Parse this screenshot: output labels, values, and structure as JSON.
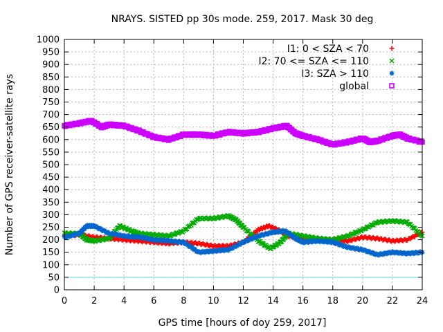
{
  "chart_data": {
    "type": "scatter",
    "title": "NRAYS. SISTED pp 30s mode. 259, 2017. Mask 30 deg",
    "xlabel": "GPS time [hours of doy 259, 2017]",
    "ylabel": "Number of GPS receiver-satellite rays",
    "xlim": [
      0,
      24
    ],
    "ylim": [
      0,
      1000
    ],
    "xticks": [
      0,
      2,
      4,
      6,
      8,
      10,
      12,
      14,
      16,
      18,
      20,
      22,
      24
    ],
    "yticks": [
      0,
      50,
      100,
      150,
      200,
      250,
      300,
      350,
      400,
      450,
      500,
      550,
      600,
      650,
      700,
      750,
      800,
      850,
      900,
      950,
      1000
    ],
    "grid": true,
    "legend_position": "top-right",
    "reference_line": {
      "y": 50,
      "color": "#4fd6d6"
    },
    "series": [
      {
        "name": "I1: 0 < SZA < 70",
        "color": "#ff0000",
        "marker": "+",
        "x": [
          0,
          1,
          2,
          3,
          4,
          5,
          6,
          7,
          8,
          9,
          10,
          11,
          12,
          13,
          13.7,
          14.5,
          15,
          16,
          17,
          18,
          19,
          20,
          21,
          22,
          23,
          24
        ],
        "y": [
          215,
          220,
          210,
          205,
          200,
          195,
          190,
          185,
          190,
          185,
          175,
          175,
          190,
          240,
          255,
          235,
          215,
          205,
          200,
          200,
          195,
          210,
          205,
          195,
          200,
          230
        ]
      },
      {
        "name": "I2: 70 <= SZA <= 110",
        "color": "#00aa00",
        "marker": "x",
        "x": [
          0,
          1,
          1.5,
          2,
          3,
          3.7,
          4.5,
          5,
          6,
          7,
          8,
          9,
          10,
          11,
          11.5,
          12,
          13,
          13.8,
          14.5,
          15,
          16,
          17,
          18,
          19,
          20,
          21,
          22,
          23,
          24
        ],
        "y": [
          225,
          225,
          200,
          195,
          205,
          255,
          235,
          225,
          220,
          215,
          235,
          285,
          285,
          295,
          280,
          250,
          195,
          165,
          190,
          225,
          215,
          205,
          200,
          215,
          240,
          270,
          275,
          270,
          215
        ]
      },
      {
        "name": "I3: SZA > 110",
        "color": "#0066cc",
        "marker": "*",
        "x": [
          0,
          1,
          1.5,
          2,
          3,
          4,
          5,
          6,
          7,
          8,
          9,
          10,
          11,
          12,
          13,
          14,
          14.8,
          15.5,
          16,
          17,
          18,
          19,
          20,
          21,
          22,
          23,
          24
        ],
        "y": [
          210,
          225,
          255,
          255,
          225,
          215,
          210,
          200,
          195,
          190,
          150,
          155,
          160,
          190,
          215,
          230,
          235,
          205,
          190,
          195,
          190,
          170,
          160,
          140,
          150,
          145,
          150
        ]
      },
      {
        "name": "global",
        "color": "#cc00ff",
        "marker": "square",
        "x": [
          0,
          1,
          1.8,
          2.5,
          3,
          4,
          5,
          6,
          7,
          8,
          9,
          10,
          11,
          12,
          13,
          14,
          14.9,
          15.5,
          16,
          17,
          18,
          19,
          20,
          20.5,
          21,
          22,
          22.5,
          23,
          24
        ],
        "y": [
          655,
          665,
          675,
          650,
          660,
          655,
          635,
          610,
          600,
          620,
          620,
          615,
          630,
          625,
          630,
          645,
          655,
          625,
          615,
          600,
          580,
          590,
          605,
          590,
          595,
          615,
          620,
          605,
          590
        ]
      }
    ]
  }
}
